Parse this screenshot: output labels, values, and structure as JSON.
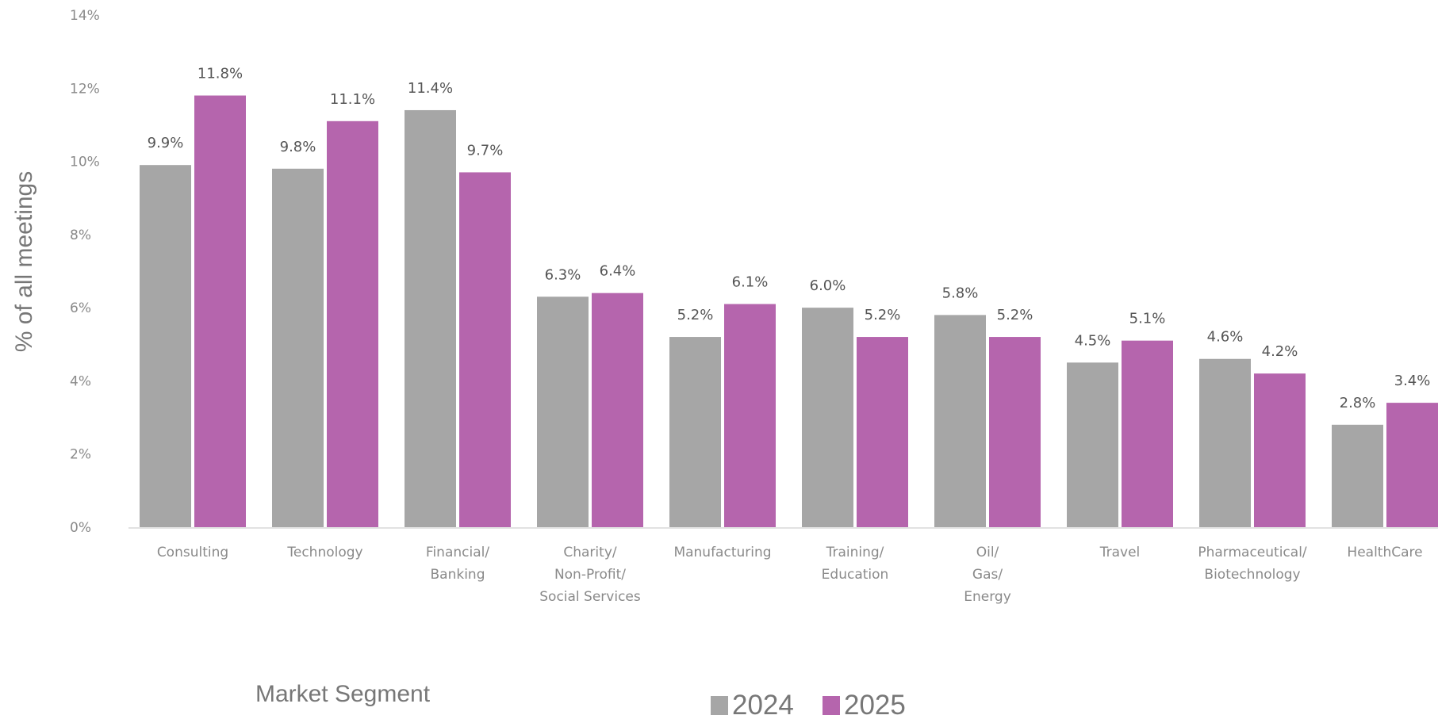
{
  "chart_data": {
    "type": "bar",
    "categories": [
      "Consulting",
      "Technology",
      "Financial/\nBanking",
      "Charity/\nNon-Profit/\nSocial Services",
      "Manufacturing",
      "Training/\nEducation",
      "Oil/\nGas/\nEnergy",
      "Travel",
      "Pharmaceutical/\nBiotechnology",
      "HealthCare"
    ],
    "series": [
      {
        "name": "2024",
        "color": "#a6a6a6",
        "values": [
          9.9,
          9.8,
          11.4,
          6.3,
          5.2,
          6.0,
          5.8,
          4.5,
          4.6,
          2.8
        ],
        "labels": [
          "9.9%",
          "9.8%",
          "11.4%",
          "6.3%",
          "5.2%",
          "6.0%",
          "5.8%",
          "4.5%",
          "4.6%",
          "2.8%"
        ]
      },
      {
        "name": "2025",
        "color": "#b565ad",
        "values": [
          11.8,
          11.1,
          9.7,
          6.4,
          6.1,
          5.2,
          5.2,
          5.1,
          4.2,
          3.4
        ],
        "labels": [
          "11.8%",
          "11.1%",
          "9.7%",
          "6.4%",
          "6.1%",
          "5.2%",
          "5.2%",
          "5.1%",
          "4.2%",
          "3.4%"
        ]
      }
    ],
    "ylim": [
      0,
      14
    ],
    "yticks": [
      "0%",
      "2%",
      "4%",
      "6%",
      "8%",
      "10%",
      "12%",
      "14%"
    ],
    "ylabel": "% of all meetings",
    "xlabel": "Market Segment",
    "legend_position": "bottom",
    "grid": false
  }
}
